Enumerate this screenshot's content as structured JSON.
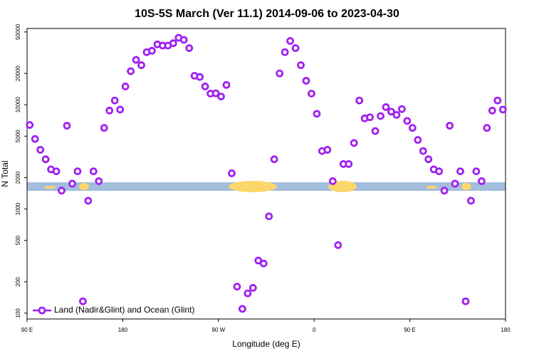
{
  "chart_data": {
    "type": "scatter",
    "title": "10S-5S March (Ver 11.1)   2014-09-06 to 2023-04-30",
    "x_label": "Longitude (deg E)",
    "y_label": "N Total",
    "y_log": true,
    "legend": "lower left",
    "xlim": [
      90,
      540
    ],
    "ylim": [
      88,
      54000
    ],
    "xticks": [
      {
        "value": 90,
        "label": "90 E"
      },
      {
        "value": 180,
        "label": "180"
      },
      {
        "value": 270,
        "label": "90 W"
      },
      {
        "value": 360,
        "label": "0"
      },
      {
        "value": 450,
        "label": "90 E"
      },
      {
        "value": 540,
        "label": "180"
      }
    ],
    "yticks": [
      100,
      200,
      500,
      1000,
      2000,
      5000,
      10000,
      20000,
      50000
    ],
    "x": [
      92.5,
      97.5,
      102.5,
      107.5,
      112.5,
      117.5,
      122.5,
      127.5,
      132.5,
      137.5,
      142.5,
      147.5,
      152.5,
      157.5,
      162.5,
      167.5,
      172.5,
      177.5,
      182.5,
      187.5,
      192.5,
      197.5,
      202.5,
      207.5,
      212.5,
      217.5,
      222.5,
      227.5,
      232.5,
      237.5,
      242.5,
      247.5,
      252.5,
      257.5,
      262.5,
      267.5,
      272.5,
      277.5,
      282.5,
      287.5,
      292.5,
      297.5,
      302.5,
      307.5,
      312.5,
      317.5,
      322.5,
      327.5,
      332.5,
      337.5,
      342.5,
      347.5,
      352.5,
      357.5,
      362.5,
      367.5,
      372.5,
      377.5,
      382.5,
      387.5,
      392.5,
      397.5,
      402.5,
      407.5,
      412.5,
      417.5,
      422.5,
      427.5,
      432.5,
      437.5,
      442.5,
      447.5,
      452.5,
      457.5,
      462.5,
      467.5,
      472.5,
      477.5,
      482.5,
      487.5,
      492.5,
      497.5,
      502.5,
      507.5,
      512.5,
      517.5,
      522.5,
      527.5,
      532.5,
      537.5
    ],
    "series": [
      {
        "name": "Land (Nadir&Glint) and Ocean (Glint)",
        "color": "#a020f0",
        "values": [
          6400,
          4700,
          3700,
          3000,
          2400,
          2300,
          1500,
          6300,
          1750,
          2300,
          130,
          1200,
          2300,
          1850,
          6000,
          8800,
          11000,
          9000,
          15000,
          21000,
          27000,
          24000,
          32000,
          33000,
          38000,
          37000,
          37000,
          39000,
          44000,
          42000,
          35000,
          19000,
          18500,
          15000,
          12800,
          12900,
          12000,
          15500,
          2200,
          180,
          110,
          155,
          175,
          320,
          300,
          850,
          3000,
          20000,
          32000,
          41000,
          35000,
          24000,
          17000,
          12800,
          8200,
          3600,
          3700,
          1850,
          450,
          2700,
          2700,
          4300,
          11000,
          7400,
          7600,
          5600,
          7800,
          9500,
          8600,
          8000,
          9100,
          7000,
          6000,
          4600,
          3600,
          3000,
          2400,
          2300,
          1500,
          6300,
          1750,
          2300,
          130,
          1200,
          2300,
          1850,
          6000,
          8800,
          11000,
          9000
        ]
      }
    ]
  }
}
